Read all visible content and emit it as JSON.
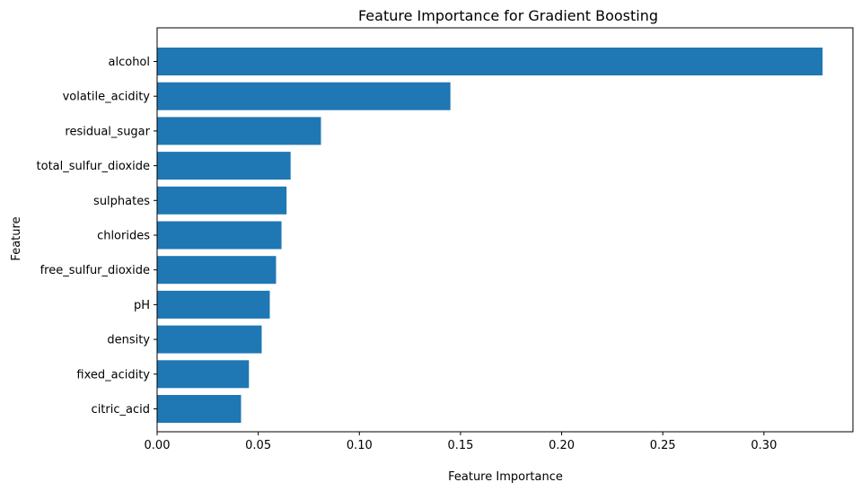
{
  "chart_data": {
    "type": "bar",
    "orientation": "horizontal",
    "title": "Feature Importance for Gradient Boosting",
    "xlabel": "Feature Importance",
    "ylabel": "Feature",
    "categories": [
      "alcohol",
      "volatile_acidity",
      "residual_sugar",
      "total_sulfur_dioxide",
      "sulphates",
      "chlorides",
      "free_sulfur_dioxide",
      "pH",
      "density",
      "fixed_acidity",
      "citric_acid"
    ],
    "values": [
      0.329,
      0.145,
      0.081,
      0.066,
      0.064,
      0.0615,
      0.0588,
      0.0557,
      0.0517,
      0.0454,
      0.0415
    ],
    "xlim": [
      0,
      0.344
    ],
    "xticks": [
      0.0,
      0.05,
      0.1,
      0.15,
      0.2,
      0.25,
      0.3
    ],
    "xtick_labels": [
      "0.00",
      "0.05",
      "0.10",
      "0.15",
      "0.20",
      "0.25",
      "0.30"
    ],
    "bar_color": "#1f77b4",
    "grid": false,
    "legend": "none"
  }
}
